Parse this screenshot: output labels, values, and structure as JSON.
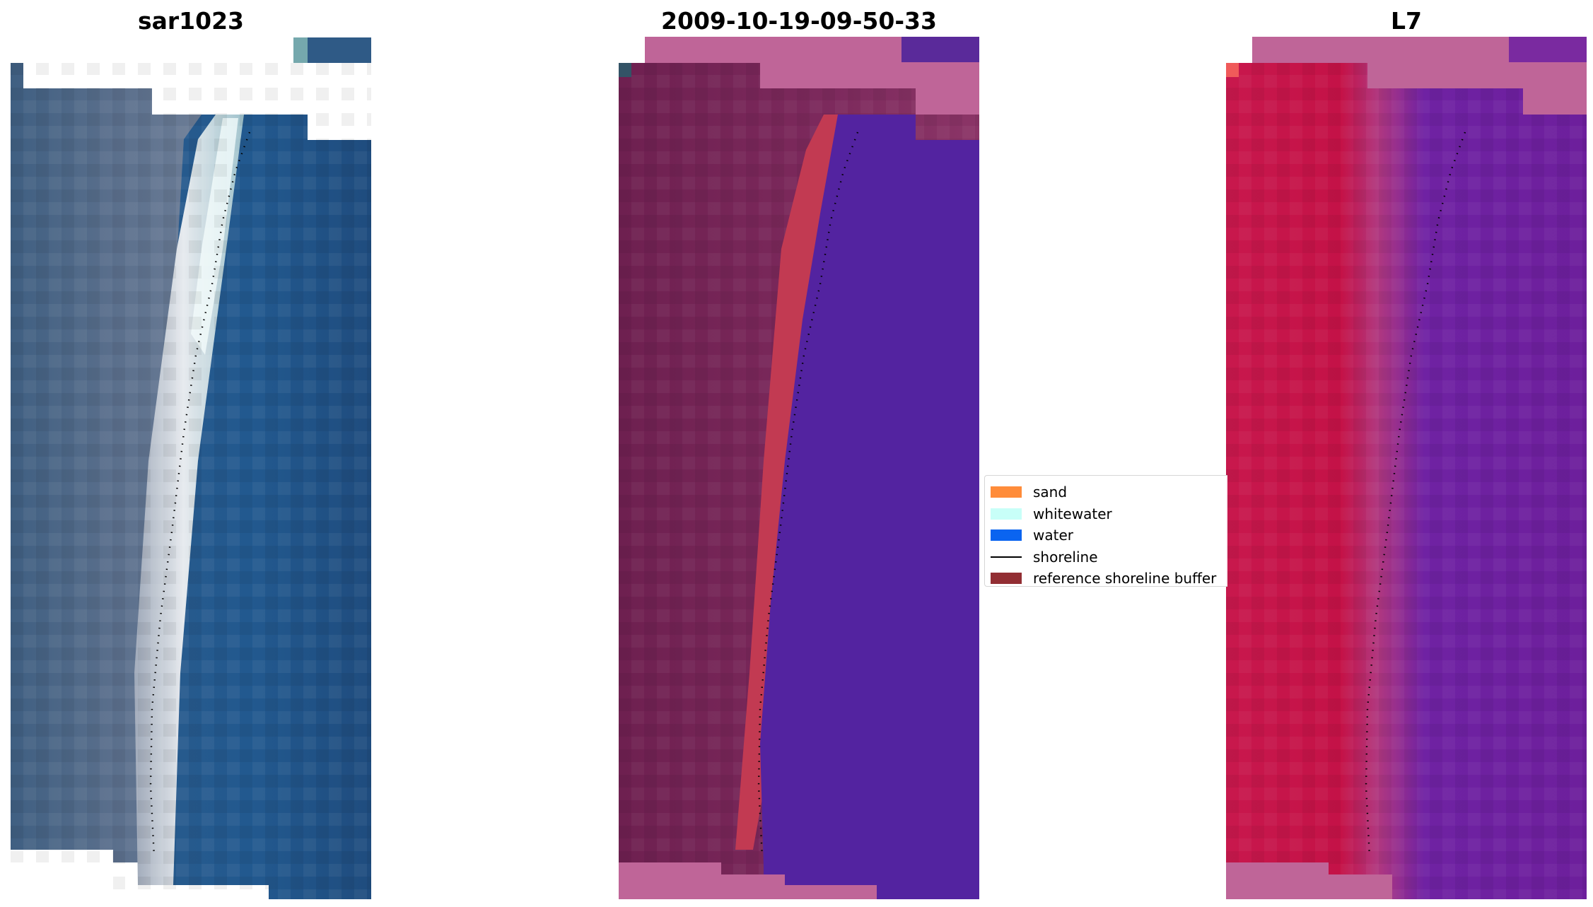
{
  "panels": [
    {
      "title": "sar1023",
      "colors": {
        "land": "#4c6787",
        "water": "#25588c",
        "beach": "#dde4e6",
        "nodata": "#ffffff"
      }
    },
    {
      "title": "2009-10-19-09-50-33",
      "colors": {
        "land": "#7a2859",
        "water": "#5323a0",
        "buffer": "#c23a52",
        "cloud": "#bf6598"
      }
    },
    {
      "title": "L7",
      "colors": {
        "land": "#c4164a",
        "water": "#6c21a2",
        "mixed": "#a04a98",
        "cloud": "#bf6598"
      }
    }
  ],
  "legend": {
    "items": [
      {
        "label": "sand",
        "color": "#ff8c3a",
        "kind": "patch"
      },
      {
        "label": "whitewater",
        "color": "#c8fff8",
        "kind": "patch"
      },
      {
        "label": "water",
        "color": "#0a64f0",
        "kind": "patch"
      },
      {
        "label": "shoreline",
        "color": "#000000",
        "kind": "line"
      },
      {
        "label": "reference shoreline buffer",
        "color": "#922e33",
        "kind": "patch"
      }
    ]
  }
}
